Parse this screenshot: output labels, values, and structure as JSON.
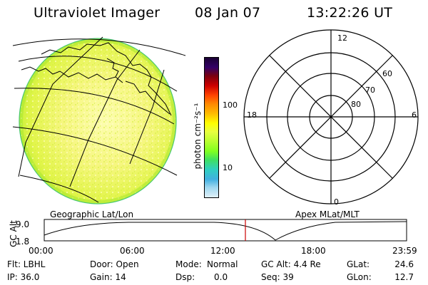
{
  "header": {
    "title": "Ultraviolet Imager",
    "date": "08 Jan 07",
    "time": "13:22:26 UT"
  },
  "colorbar": {
    "unit_label": "photon cm⁻²s⁻¹",
    "tick_100": "100",
    "tick_10": "10",
    "colors_top_to_bottom": [
      "#1a0033",
      "#330066",
      "#7a0010",
      "#cc0000",
      "#ff4400",
      "#ff8800",
      "#ffbb00",
      "#ffff00",
      "#e8ff40",
      "#b8ff30",
      "#80ff20",
      "#40e060",
      "#30d0c0",
      "#40b0e0",
      "#a0d8f0",
      "#e0f0f8"
    ]
  },
  "left_panel": {
    "label": "Geographic Lat/Lon"
  },
  "right_panel": {
    "label": "Apex MLat/MLT",
    "mlt_labels": {
      "top": "12",
      "left": "18",
      "right": "6",
      "bottom": "0"
    },
    "mlat_labels": {
      "outer": "60",
      "middle": "70",
      "inner": "80"
    }
  },
  "timeline": {
    "axis_title": "GC Alt",
    "y_top": "9.0",
    "y_bottom": "1.8",
    "x_ticks": [
      "00:00",
      "06:00",
      "12:00",
      "18:00",
      "23:59"
    ],
    "marker_color": "#cc0000"
  },
  "info": {
    "flt": "Flt: LBHL",
    "ip": "IP: 36.0",
    "door": "Door: Open",
    "gain": "Gain: 14",
    "mode_label": "Mode:",
    "mode_value": "Normal",
    "dsp_label": "Dsp:",
    "dsp_value": "0.0",
    "gcalt": "GC Alt: 4.4 Re",
    "seq": "Seq: 39",
    "glat_label": "GLat:",
    "glat_value": "24.6",
    "glon_label": "GLon:",
    "glon_value": "12.7"
  }
}
